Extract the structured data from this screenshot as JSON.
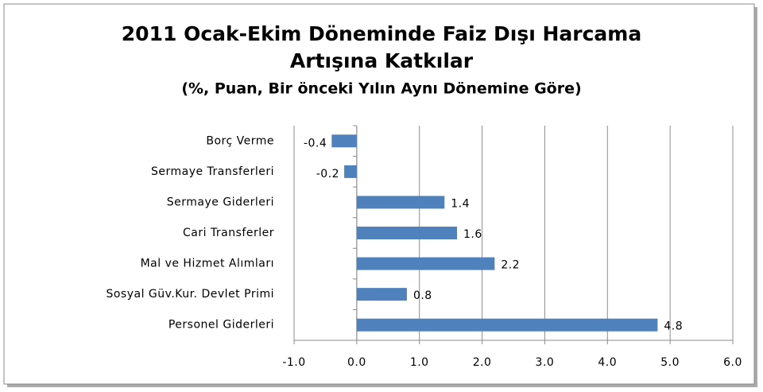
{
  "chart_data": {
    "type": "barh",
    "title": [
      "2011 Ocak-Ekim Döneminde Faiz Dışı Harcama",
      "Artışına Katkılar"
    ],
    "subtitle": "(%, Puan, Bir önceki Yılın Aynı Dönemine Göre)",
    "categories": [
      "Borç Verme",
      "Sermaye Transferleri",
      "Sermaye Giderleri",
      "Cari Transferler",
      "Mal ve Hizmet Alımları",
      "Sosyal Güv.Kur. Devlet Primi",
      "Personel Giderleri"
    ],
    "values": [
      -0.4,
      -0.2,
      1.4,
      1.6,
      2.2,
      0.8,
      4.8
    ],
    "color": "#4f81bd",
    "xlim": [
      -1,
      6
    ],
    "xticks": [
      {
        "value": -1,
        "label": "-1.0"
      },
      {
        "value": 0,
        "label": "0.0"
      },
      {
        "value": 1,
        "label": "1.0"
      },
      {
        "value": 2,
        "label": "2.0"
      },
      {
        "value": 3,
        "label": "3.0"
      },
      {
        "value": 4,
        "label": "4.0"
      },
      {
        "value": 5,
        "label": "5.0"
      },
      {
        "value": 6,
        "label": "6.0"
      }
    ],
    "grid": true
  }
}
